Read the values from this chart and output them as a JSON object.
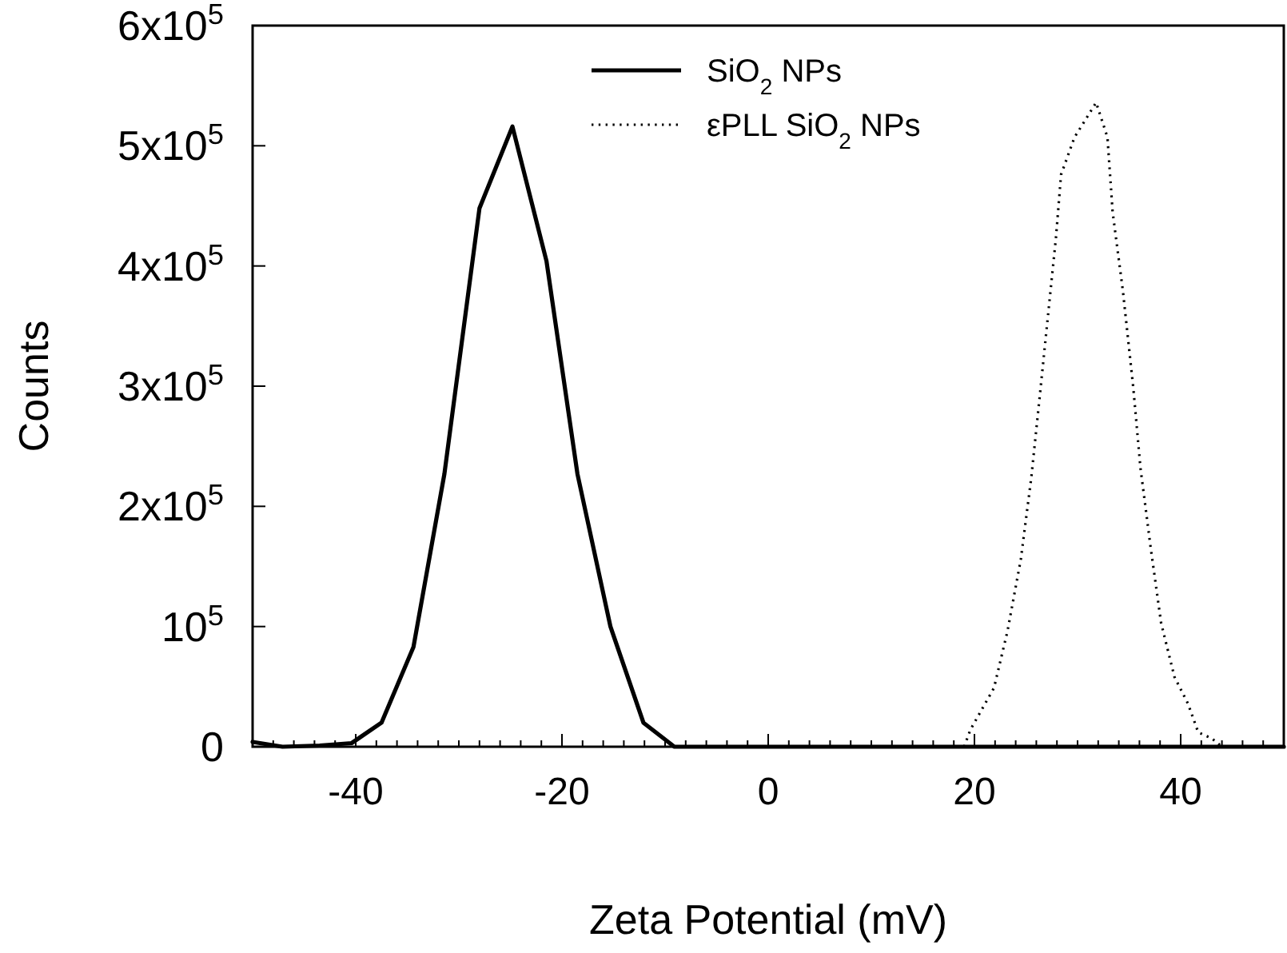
{
  "chart_data": {
    "type": "line",
    "xlabel": "Zeta Potential (mV)",
    "ylabel": "Counts",
    "xlim": [
      -50,
      50
    ],
    "ylim": [
      0,
      600000
    ],
    "xticks": [
      {
        "value": -50,
        "label": null
      },
      {
        "value": -48,
        "label": null
      },
      {
        "value": -46,
        "label": null
      },
      {
        "value": -44,
        "label": null
      },
      {
        "value": -42,
        "label": null
      },
      -40,
      {
        "value": -38,
        "label": null
      },
      {
        "value": -36,
        "label": null
      },
      {
        "value": -34,
        "label": null
      },
      {
        "value": -32,
        "label": null
      },
      {
        "value": -30,
        "label": null
      },
      {
        "value": -28,
        "label": null
      },
      {
        "value": -26,
        "label": null
      },
      {
        "value": -24,
        "label": null
      },
      {
        "value": -22,
        "label": null
      },
      -20,
      {
        "value": -18,
        "label": null
      },
      {
        "value": -16,
        "label": null
      },
      {
        "value": -14,
        "label": null
      },
      {
        "value": -12,
        "label": null
      },
      {
        "value": -10,
        "label": null
      },
      {
        "value": -8,
        "label": null
      },
      {
        "value": -6,
        "label": null
      },
      {
        "value": -4,
        "label": null
      },
      {
        "value": -2,
        "label": null
      },
      0,
      {
        "value": 2,
        "label": null
      },
      {
        "value": 4,
        "label": null
      },
      {
        "value": 6,
        "label": null
      },
      {
        "value": 8,
        "label": null
      },
      {
        "value": 10,
        "label": null
      },
      {
        "value": 12,
        "label": null
      },
      {
        "value": 14,
        "label": null
      },
      {
        "value": 16,
        "label": null
      },
      {
        "value": 18,
        "label": null
      },
      20,
      {
        "value": 22,
        "label": null
      },
      {
        "value": 24,
        "label": null
      },
      {
        "value": 26,
        "label": null
      },
      {
        "value": 28,
        "label": null
      },
      {
        "value": 30,
        "label": null
      },
      {
        "value": 32,
        "label": null
      },
      {
        "value": 34,
        "label": null
      },
      {
        "value": 36,
        "label": null
      },
      {
        "value": 38,
        "label": null
      },
      40,
      {
        "value": 42,
        "label": null
      },
      {
        "value": 44,
        "label": null
      },
      {
        "value": 46,
        "label": null
      },
      {
        "value": 48,
        "label": null
      },
      {
        "value": 50,
        "label": null
      }
    ],
    "yticks": [
      0,
      {
        "value": 100000,
        "label": "10$^{5}$"
      },
      {
        "value": 200000,
        "label": "2x10$^{5}$"
      },
      {
        "value": 300000,
        "label": "3x10$^{5}$"
      },
      {
        "value": 400000,
        "label": "4x10$^{5}$"
      },
      {
        "value": 500000,
        "label": "5x10$^{5}$"
      },
      {
        "value": 600000,
        "label": "6x10$^{5}$"
      }
    ],
    "grid": false,
    "legend": "top right",
    "series": [
      {
        "name": "SiO$_{2}$ NPs",
        "color": "#000000",
        "line_style": "solid",
        "x": [
          -50,
          -47.1,
          -43.5,
          -40.4,
          -37.5,
          -34.4,
          -31.4,
          -28.0,
          -24.8,
          -21.5,
          -18.5,
          -15.3,
          -12.1,
          -9.1,
          0,
          20,
          40,
          50
        ],
        "values": [
          4000,
          0,
          1000,
          3000,
          20000,
          83000,
          227000,
          448000,
          516000,
          404000,
          227000,
          100000,
          20000,
          0,
          0,
          0,
          0,
          0
        ]
      },
      {
        "name": "εPLL SiO$_{2}$ NPs",
        "color": "#000000",
        "line_style": "dotted",
        "x": [
          19,
          19.6,
          21.9,
          23.2,
          24.5,
          25.5,
          26.3,
          27.1,
          27.9,
          28.4,
          29.7,
          31.8,
          32.9,
          33.4,
          34.4,
          35.4,
          36.1,
          37.1,
          38.1,
          39.4,
          40.7,
          41.7,
          43.0,
          44
        ],
        "values": [
          0,
          14000,
          49000,
          96000,
          156000,
          223000,
          289000,
          356000,
          423000,
          476000,
          507000,
          536000,
          507000,
          445000,
          379000,
          299000,
          232000,
          165000,
          103000,
          58000,
          36000,
          12000,
          7000,
          0
        ]
      }
    ]
  }
}
